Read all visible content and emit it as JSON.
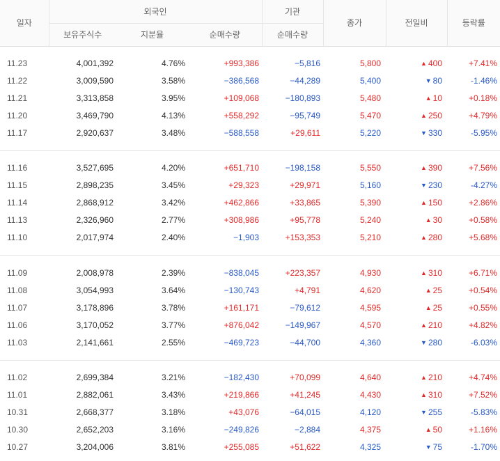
{
  "header": {
    "date": "일자",
    "foreign": "외국인",
    "institution": "기관",
    "close": "종가",
    "change": "전일비",
    "rate": "등락률",
    "holdings": "보유주식수",
    "ratio": "지분율",
    "foreign_net": "순매수량",
    "inst_net": "순매수량"
  },
  "icons": {
    "up": "▲",
    "down": "▼"
  },
  "colors": {
    "up": "#e02a2a",
    "down": "#2859c6"
  },
  "groups": [
    [
      {
        "date": "11.23",
        "holdings": "4,001,392",
        "ratio": "4.76%",
        "foreign_net": "+993,386",
        "foreign_dir": "up",
        "inst_net": "−5,816",
        "inst_dir": "down",
        "close": "5,800",
        "close_dir": "up",
        "change": "400",
        "change_dir": "up",
        "rate": "+7.41%",
        "rate_dir": "up"
      },
      {
        "date": "11.22",
        "holdings": "3,009,590",
        "ratio": "3.58%",
        "foreign_net": "−386,568",
        "foreign_dir": "down",
        "inst_net": "−44,289",
        "inst_dir": "down",
        "close": "5,400",
        "close_dir": "down",
        "change": "80",
        "change_dir": "down",
        "rate": "-1.46%",
        "rate_dir": "down"
      },
      {
        "date": "11.21",
        "holdings": "3,313,858",
        "ratio": "3.95%",
        "foreign_net": "+109,068",
        "foreign_dir": "up",
        "inst_net": "−180,893",
        "inst_dir": "down",
        "close": "5,480",
        "close_dir": "up",
        "change": "10",
        "change_dir": "up",
        "rate": "+0.18%",
        "rate_dir": "up"
      },
      {
        "date": "11.20",
        "holdings": "3,469,790",
        "ratio": "4.13%",
        "foreign_net": "+558,292",
        "foreign_dir": "up",
        "inst_net": "−95,749",
        "inst_dir": "down",
        "close": "5,470",
        "close_dir": "up",
        "change": "250",
        "change_dir": "up",
        "rate": "+4.79%",
        "rate_dir": "up"
      },
      {
        "date": "11.17",
        "holdings": "2,920,637",
        "ratio": "3.48%",
        "foreign_net": "−588,558",
        "foreign_dir": "down",
        "inst_net": "+29,611",
        "inst_dir": "up",
        "close": "5,220",
        "close_dir": "down",
        "change": "330",
        "change_dir": "down",
        "rate": "-5.95%",
        "rate_dir": "down"
      }
    ],
    [
      {
        "date": "11.16",
        "holdings": "3,527,695",
        "ratio": "4.20%",
        "foreign_net": "+651,710",
        "foreign_dir": "up",
        "inst_net": "−198,158",
        "inst_dir": "down",
        "close": "5,550",
        "close_dir": "up",
        "change": "390",
        "change_dir": "up",
        "rate": "+7.56%",
        "rate_dir": "up"
      },
      {
        "date": "11.15",
        "holdings": "2,898,235",
        "ratio": "3.45%",
        "foreign_net": "+29,323",
        "foreign_dir": "up",
        "inst_net": "+29,971",
        "inst_dir": "up",
        "close": "5,160",
        "close_dir": "down",
        "change": "230",
        "change_dir": "down",
        "rate": "-4.27%",
        "rate_dir": "down"
      },
      {
        "date": "11.14",
        "holdings": "2,868,912",
        "ratio": "3.42%",
        "foreign_net": "+462,866",
        "foreign_dir": "up",
        "inst_net": "+33,865",
        "inst_dir": "up",
        "close": "5,390",
        "close_dir": "up",
        "change": "150",
        "change_dir": "up",
        "rate": "+2.86%",
        "rate_dir": "up"
      },
      {
        "date": "11.13",
        "holdings": "2,326,960",
        "ratio": "2.77%",
        "foreign_net": "+308,986",
        "foreign_dir": "up",
        "inst_net": "+95,778",
        "inst_dir": "up",
        "close": "5,240",
        "close_dir": "up",
        "change": "30",
        "change_dir": "up",
        "rate": "+0.58%",
        "rate_dir": "up"
      },
      {
        "date": "11.10",
        "holdings": "2,017,974",
        "ratio": "2.40%",
        "foreign_net": "−1,903",
        "foreign_dir": "down",
        "inst_net": "+153,353",
        "inst_dir": "up",
        "close": "5,210",
        "close_dir": "up",
        "change": "280",
        "change_dir": "up",
        "rate": "+5.68%",
        "rate_dir": "up"
      }
    ],
    [
      {
        "date": "11.09",
        "holdings": "2,008,978",
        "ratio": "2.39%",
        "foreign_net": "−838,045",
        "foreign_dir": "down",
        "inst_net": "+223,357",
        "inst_dir": "up",
        "close": "4,930",
        "close_dir": "up",
        "change": "310",
        "change_dir": "up",
        "rate": "+6.71%",
        "rate_dir": "up"
      },
      {
        "date": "11.08",
        "holdings": "3,054,993",
        "ratio": "3.64%",
        "foreign_net": "−130,743",
        "foreign_dir": "down",
        "inst_net": "+4,791",
        "inst_dir": "up",
        "close": "4,620",
        "close_dir": "up",
        "change": "25",
        "change_dir": "up",
        "rate": "+0.54%",
        "rate_dir": "up"
      },
      {
        "date": "11.07",
        "holdings": "3,178,896",
        "ratio": "3.78%",
        "foreign_net": "+161,171",
        "foreign_dir": "up",
        "inst_net": "−79,612",
        "inst_dir": "down",
        "close": "4,595",
        "close_dir": "up",
        "change": "25",
        "change_dir": "up",
        "rate": "+0.55%",
        "rate_dir": "up"
      },
      {
        "date": "11.06",
        "holdings": "3,170,052",
        "ratio": "3.77%",
        "foreign_net": "+876,042",
        "foreign_dir": "up",
        "inst_net": "−149,967",
        "inst_dir": "down",
        "close": "4,570",
        "close_dir": "up",
        "change": "210",
        "change_dir": "up",
        "rate": "+4.82%",
        "rate_dir": "up"
      },
      {
        "date": "11.03",
        "holdings": "2,141,661",
        "ratio": "2.55%",
        "foreign_net": "−469,723",
        "foreign_dir": "down",
        "inst_net": "−44,700",
        "inst_dir": "down",
        "close": "4,360",
        "close_dir": "down",
        "change": "280",
        "change_dir": "down",
        "rate": "-6.03%",
        "rate_dir": "down"
      }
    ],
    [
      {
        "date": "11.02",
        "holdings": "2,699,384",
        "ratio": "3.21%",
        "foreign_net": "−182,430",
        "foreign_dir": "down",
        "inst_net": "+70,099",
        "inst_dir": "up",
        "close": "4,640",
        "close_dir": "up",
        "change": "210",
        "change_dir": "up",
        "rate": "+4.74%",
        "rate_dir": "up"
      },
      {
        "date": "11.01",
        "holdings": "2,882,061",
        "ratio": "3.43%",
        "foreign_net": "+219,866",
        "foreign_dir": "up",
        "inst_net": "+41,245",
        "inst_dir": "up",
        "close": "4,430",
        "close_dir": "up",
        "change": "310",
        "change_dir": "up",
        "rate": "+7.52%",
        "rate_dir": "up"
      },
      {
        "date": "10.31",
        "holdings": "2,668,377",
        "ratio": "3.18%",
        "foreign_net": "+43,076",
        "foreign_dir": "up",
        "inst_net": "−64,015",
        "inst_dir": "down",
        "close": "4,120",
        "close_dir": "down",
        "change": "255",
        "change_dir": "down",
        "rate": "-5.83%",
        "rate_dir": "down"
      },
      {
        "date": "10.30",
        "holdings": "2,652,203",
        "ratio": "3.16%",
        "foreign_net": "−249,826",
        "foreign_dir": "down",
        "inst_net": "−2,884",
        "inst_dir": "down",
        "close": "4,375",
        "close_dir": "up",
        "change": "50",
        "change_dir": "up",
        "rate": "+1.16%",
        "rate_dir": "up"
      },
      {
        "date": "10.27",
        "holdings": "3,204,006",
        "ratio": "3.81%",
        "foreign_net": "+255,085",
        "foreign_dir": "up",
        "inst_net": "+51,622",
        "inst_dir": "up",
        "close": "4,325",
        "close_dir": "down",
        "change": "75",
        "change_dir": "down",
        "rate": "-1.70%",
        "rate_dir": "down"
      }
    ]
  ]
}
